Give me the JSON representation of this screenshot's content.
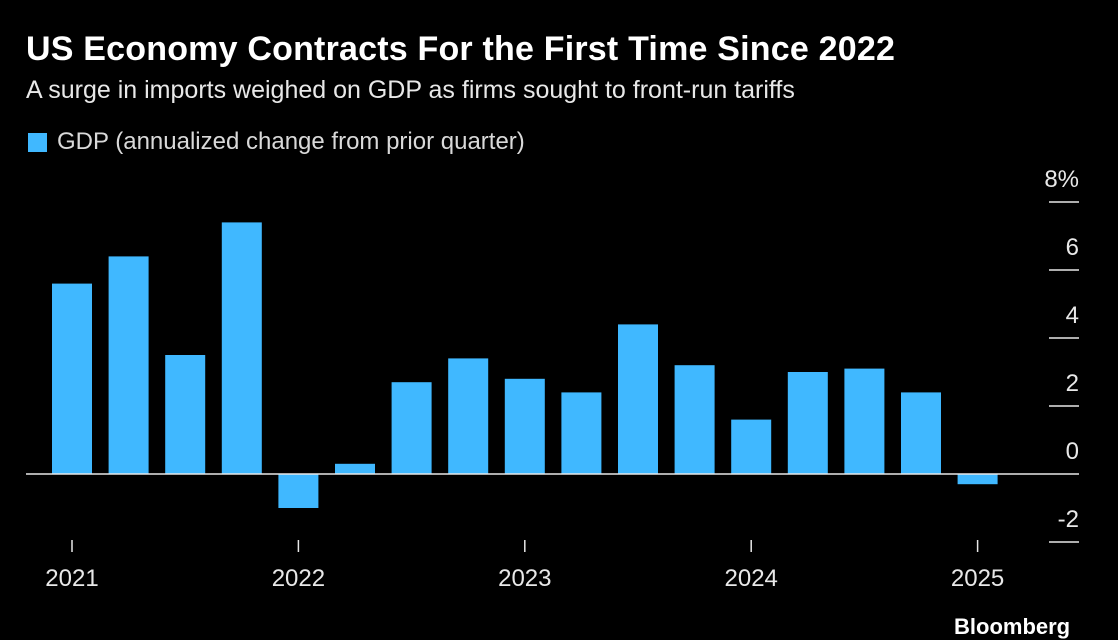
{
  "header": {
    "title": "US Economy Contracts For the First Time Since 2022",
    "subtitle": "A surge in imports weighed on GDP as firms sought to front-run tariffs"
  },
  "legend": {
    "label": "GDP (annualized change from prior quarter)",
    "color": "#40b8ff"
  },
  "source": {
    "brand": "Bloomberg"
  },
  "colors": {
    "bar": "#40b8ff",
    "background": "#000000",
    "axis": "#e8e8e8"
  },
  "chart_data": {
    "type": "bar",
    "title": "US Economy Contracts For the First Time Since 2022",
    "subtitle": "A surge in imports weighed on GDP as firms sought to front-run tariffs",
    "xlabel": "",
    "ylabel": "",
    "categories": [
      "2021 Q1",
      "2021 Q2",
      "2021 Q3",
      "2021 Q4",
      "2022 Q1",
      "2022 Q2",
      "2022 Q3",
      "2022 Q4",
      "2023 Q1",
      "2023 Q2",
      "2023 Q3",
      "2023 Q4",
      "2024 Q1",
      "2024 Q2",
      "2024 Q3",
      "2024 Q4",
      "2025 Q1"
    ],
    "series": [
      {
        "name": "GDP (annualized change from prior quarter)",
        "values": [
          5.6,
          6.4,
          3.5,
          7.4,
          -1.0,
          0.3,
          2.7,
          3.4,
          2.8,
          2.4,
          4.4,
          3.2,
          1.6,
          3.0,
          3.1,
          2.4,
          -0.3
        ]
      }
    ],
    "x_ticks": [
      "2021",
      "2022",
      "2023",
      "2024",
      "2025"
    ],
    "y_ticks": [
      8,
      6,
      4,
      2,
      0,
      -2
    ],
    "y_tick_labels": [
      "8%",
      "6",
      "4",
      "2",
      "0",
      "-2"
    ],
    "ylim": [
      -2.5,
      8
    ],
    "y_axis_side": "right",
    "grid": false,
    "legend_position": "top-left"
  }
}
